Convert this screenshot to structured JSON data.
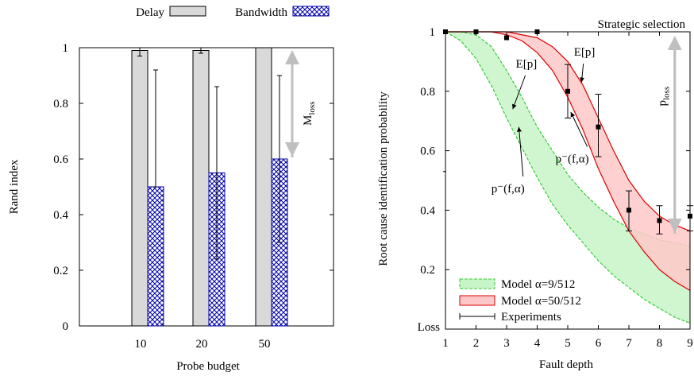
{
  "chart_data": [
    {
      "type": "bar",
      "xlabel": "Probe budget",
      "ylabel": "Rand index",
      "categories": [
        "10",
        "20",
        "50"
      ],
      "ylim": [
        0,
        1
      ],
      "yticks": [
        "0",
        "0.2",
        "0.4",
        "0.6",
        "0.8",
        "1"
      ],
      "legend_position": "top",
      "series": [
        {
          "name": "Delay",
          "values": [
            0.99,
            0.99,
            1.0
          ],
          "err_low": [
            0.97,
            0.98,
            1.0
          ],
          "err_high": [
            1.0,
            1.0,
            1.0
          ],
          "color": "#d9d9d9",
          "pattern": "solid"
        },
        {
          "name": "Bandwidth",
          "values": [
            0.5,
            0.55,
            0.6
          ],
          "err_low": [
            0.5,
            0.24,
            0.3
          ],
          "err_high": [
            0.92,
            0.86,
            0.9
          ],
          "color": "#0000aa",
          "pattern": "crosshatch"
        }
      ],
      "annotations": [
        {
          "label": "M",
          "sub": "loss",
          "from": 1.0,
          "to": 0.6,
          "color": "#bfbfbf"
        }
      ]
    },
    {
      "type": "line",
      "xlabel": "Fault depth",
      "ylabel": "Root cause identification probability",
      "xlim": [
        1,
        9
      ],
      "ylim": [
        0,
        1
      ],
      "xticks": [
        "1",
        "2",
        "3",
        "4",
        "5",
        "6",
        "7",
        "8",
        "9"
      ],
      "yticks": [
        "0.2",
        "0.4",
        "0.6",
        "0.8",
        "1"
      ],
      "y_extra_label": "Loss",
      "legend_position": "bottom-left",
      "series": [
        {
          "name": "Model α=9/512",
          "type": "band",
          "color": "#33cc33",
          "fill": "#c8f5c8",
          "dashed": true,
          "x": [
            1,
            1.5,
            2,
            2.5,
            3,
            3.5,
            4,
            4.5,
            5,
            5.5,
            6,
            6.5,
            7,
            7.5,
            8,
            8.5,
            9
          ],
          "upper": [
            1.0,
            1.0,
            0.99,
            0.95,
            0.87,
            0.78,
            0.68,
            0.6,
            0.52,
            0.46,
            0.41,
            0.37,
            0.34,
            0.32,
            0.3,
            0.29,
            0.28
          ],
          "lower": [
            1.0,
            0.97,
            0.91,
            0.82,
            0.71,
            0.61,
            0.51,
            0.42,
            0.35,
            0.29,
            0.23,
            0.18,
            0.14,
            0.1,
            0.07,
            0.04,
            0.02
          ]
        },
        {
          "name": "Model α=50/512",
          "type": "band",
          "color": "#dd0000",
          "fill": "#ffc8c8",
          "dashed": false,
          "x": [
            1,
            1.5,
            2,
            2.5,
            3,
            3.5,
            4,
            4.5,
            5,
            5.5,
            6,
            6.5,
            7,
            7.5,
            8,
            8.5,
            9
          ],
          "upper": [
            1.0,
            1.0,
            1.0,
            1.0,
            1.0,
            0.99,
            0.98,
            0.95,
            0.9,
            0.82,
            0.71,
            0.6,
            0.5,
            0.43,
            0.38,
            0.35,
            0.33
          ],
          "lower": [
            1.0,
            1.0,
            1.0,
            1.0,
            0.99,
            0.97,
            0.93,
            0.87,
            0.78,
            0.67,
            0.54,
            0.43,
            0.33,
            0.26,
            0.2,
            0.16,
            0.13
          ]
        },
        {
          "name": "Experiments",
          "type": "errorbar",
          "color": "#000000",
          "x": [
            1,
            2,
            3,
            4,
            5,
            6,
            7,
            8,
            9
          ],
          "y": [
            1.0,
            1.0,
            0.98,
            1.0,
            0.8,
            0.68,
            0.4,
            0.365,
            0.38
          ],
          "err_low": [
            1.0,
            1.0,
            0.98,
            1.0,
            0.71,
            0.58,
            0.33,
            0.32,
            0.33
          ],
          "err_high": [
            1.0,
            1.0,
            0.98,
            1.0,
            0.89,
            0.79,
            0.465,
            0.415,
            0.415
          ]
        }
      ],
      "hline": {
        "y": 1.0,
        "label": "Strategic selection"
      },
      "annotations": [
        {
          "label": "E[p]",
          "x": 3.3,
          "y": 0.88,
          "arrow_to": [
            3.2,
            0.74
          ]
        },
        {
          "label": "E[p]",
          "x": 5.2,
          "y": 0.92,
          "arrow_to": [
            5.45,
            0.83
          ]
        },
        {
          "label": "p⁻(f,α)",
          "x": 2.5,
          "y": 0.46,
          "arrow_to": [
            3.4,
            0.68
          ]
        },
        {
          "label": "p⁻(f,α)",
          "x": 4.6,
          "y": 0.56,
          "arrow_to": [
            5.1,
            0.73
          ]
        },
        {
          "label": "p",
          "sub": "loss",
          "x": 8.1,
          "y": 0.75,
          "arrow_from": 1.0,
          "arrow_to": 0.31,
          "arrow_x": 8.5
        }
      ]
    }
  ]
}
